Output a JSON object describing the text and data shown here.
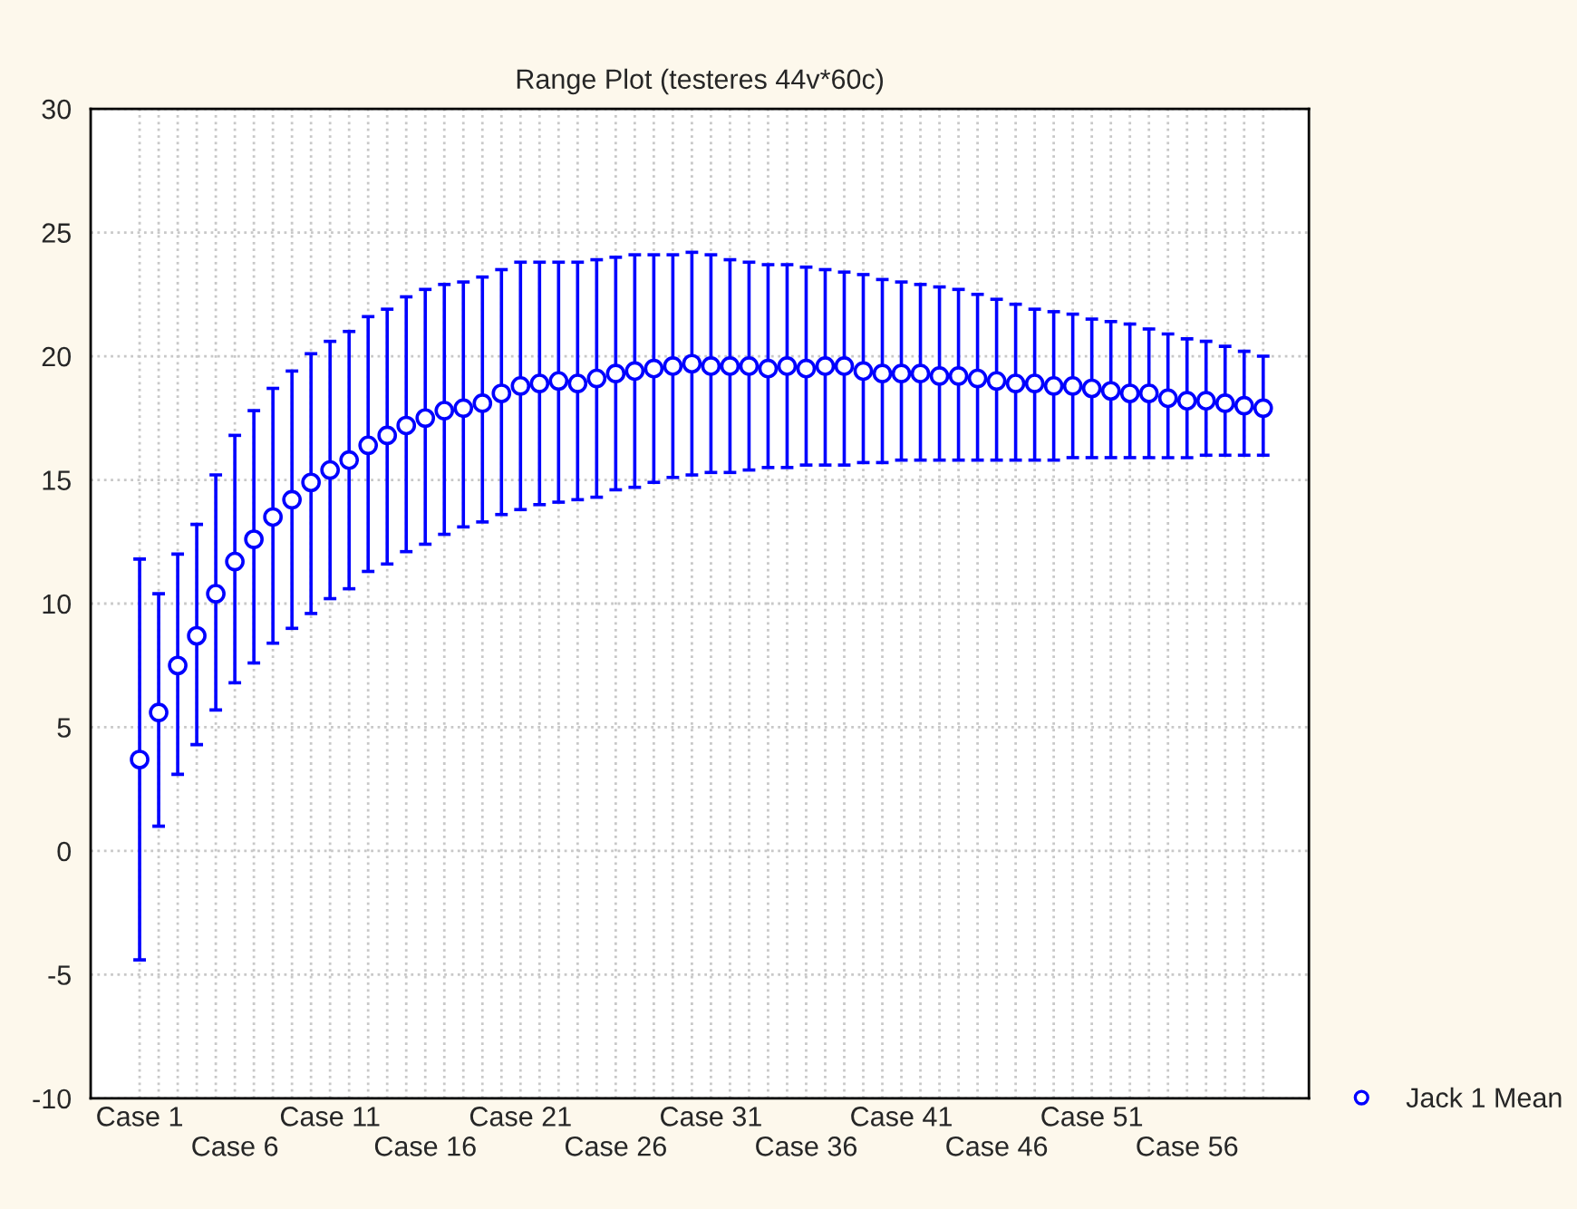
{
  "chart_data": {
    "type": "scatter",
    "title": "Range Plot (testeres 44v*60c)",
    "categories": [
      "Case 1",
      null,
      null,
      null,
      null,
      "Case 6",
      null,
      null,
      null,
      null,
      "Case 11",
      null,
      null,
      null,
      null,
      "Case 16",
      null,
      null,
      null,
      null,
      "Case 21",
      null,
      null,
      null,
      null,
      "Case 26",
      null,
      null,
      null,
      null,
      "Case 31",
      null,
      null,
      null,
      null,
      "Case 36",
      null,
      null,
      null,
      null,
      "Case 41",
      null,
      null,
      null,
      null,
      "Case 46",
      null,
      null,
      null,
      null,
      "Case 51",
      null,
      null,
      null,
      null,
      "Case 56",
      null,
      null,
      null,
      null
    ],
    "series": [
      {
        "name": "Jack 1 Mean",
        "color": "#0000ff",
        "values": [
          3.7,
          5.6,
          7.5,
          8.7,
          10.4,
          11.7,
          12.6,
          13.5,
          14.2,
          14.9,
          15.4,
          15.8,
          16.4,
          16.8,
          17.2,
          17.5,
          17.8,
          17.9,
          18.1,
          18.5,
          18.8,
          18.9,
          19.0,
          18.9,
          19.1,
          19.3,
          19.4,
          19.5,
          19.6,
          19.7,
          19.6,
          19.6,
          19.6,
          19.5,
          19.6,
          19.5,
          19.6,
          19.6,
          19.4,
          19.3,
          19.3,
          19.3,
          19.2,
          19.2,
          19.1,
          19.0,
          18.9,
          18.9,
          18.8,
          18.8,
          18.7,
          18.6,
          18.5,
          18.5,
          18.3,
          18.2,
          18.2,
          18.1,
          18.0,
          17.9
        ],
        "errors": [
          [
            -4.4,
            11.8
          ],
          [
            1.0,
            10.4
          ],
          [
            3.1,
            12.0
          ],
          [
            4.3,
            13.2
          ],
          [
            5.7,
            15.2
          ],
          [
            6.8,
            16.8
          ],
          [
            7.6,
            17.8
          ],
          [
            8.4,
            18.7
          ],
          [
            9.0,
            19.4
          ],
          [
            9.6,
            20.1
          ],
          [
            10.2,
            20.6
          ],
          [
            10.6,
            21.0
          ],
          [
            11.3,
            21.6
          ],
          [
            11.6,
            21.9
          ],
          [
            12.1,
            22.4
          ],
          [
            12.4,
            22.7
          ],
          [
            12.8,
            22.9
          ],
          [
            13.1,
            23.0
          ],
          [
            13.3,
            23.2
          ],
          [
            13.6,
            23.5
          ],
          [
            13.8,
            23.8
          ],
          [
            14.0,
            23.8
          ],
          [
            14.1,
            23.8
          ],
          [
            14.2,
            23.8
          ],
          [
            14.3,
            23.9
          ],
          [
            14.6,
            24.0
          ],
          [
            14.7,
            24.1
          ],
          [
            14.9,
            24.1
          ],
          [
            15.1,
            24.1
          ],
          [
            15.2,
            24.2
          ],
          [
            15.3,
            24.1
          ],
          [
            15.3,
            23.9
          ],
          [
            15.4,
            23.8
          ],
          [
            15.5,
            23.7
          ],
          [
            15.5,
            23.7
          ],
          [
            15.6,
            23.6
          ],
          [
            15.6,
            23.5
          ],
          [
            15.6,
            23.4
          ],
          [
            15.7,
            23.3
          ],
          [
            15.7,
            23.1
          ],
          [
            15.8,
            23.0
          ],
          [
            15.8,
            22.9
          ],
          [
            15.8,
            22.8
          ],
          [
            15.8,
            22.7
          ],
          [
            15.8,
            22.5
          ],
          [
            15.8,
            22.3
          ],
          [
            15.8,
            22.1
          ],
          [
            15.8,
            21.9
          ],
          [
            15.8,
            21.8
          ],
          [
            15.9,
            21.7
          ],
          [
            15.9,
            21.5
          ],
          [
            15.9,
            21.4
          ],
          [
            15.9,
            21.3
          ],
          [
            15.9,
            21.1
          ],
          [
            15.9,
            20.9
          ],
          [
            15.9,
            20.7
          ],
          [
            16.0,
            20.6
          ],
          [
            16.0,
            20.4
          ],
          [
            16.0,
            20.2
          ],
          [
            16.0,
            20.0
          ]
        ]
      }
    ],
    "ylim": [
      -10,
      30
    ],
    "yticks": [
      -10,
      -5,
      0,
      5,
      10,
      15,
      20,
      25,
      30
    ],
    "grid": true,
    "legend": "bottom right",
    "marker": "circle"
  }
}
